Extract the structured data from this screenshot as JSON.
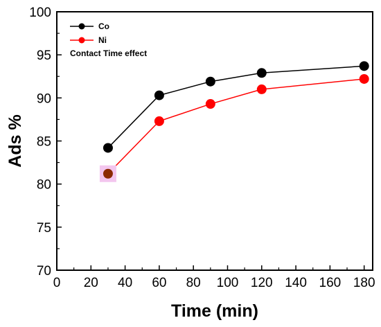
{
  "chart_data": {
    "type": "line",
    "title": "",
    "annotation": "Contact Time effect",
    "xlabel": "Time (min)",
    "ylabel": "Ads %",
    "xlim": [
      0,
      185
    ],
    "ylim": [
      70,
      100
    ],
    "xticks": [
      0,
      20,
      40,
      60,
      80,
      100,
      120,
      140,
      160,
      180
    ],
    "yticks": [
      70,
      75,
      80,
      85,
      90,
      95,
      100
    ],
    "grid": false,
    "legend_position": "top-left",
    "x": [
      30,
      60,
      90,
      120,
      180
    ],
    "series": [
      {
        "name": "Co",
        "color": "#000000",
        "values": [
          84.2,
          90.3,
          91.9,
          92.9,
          93.7
        ]
      },
      {
        "name": "Ni",
        "color": "#ff0000",
        "values": [
          81.2,
          87.3,
          89.3,
          91.0,
          92.2
        ]
      }
    ],
    "highlight": {
      "series": 1,
      "index": 0,
      "color": "#f3c6ee",
      "dot_color": "#8b2a00"
    }
  }
}
